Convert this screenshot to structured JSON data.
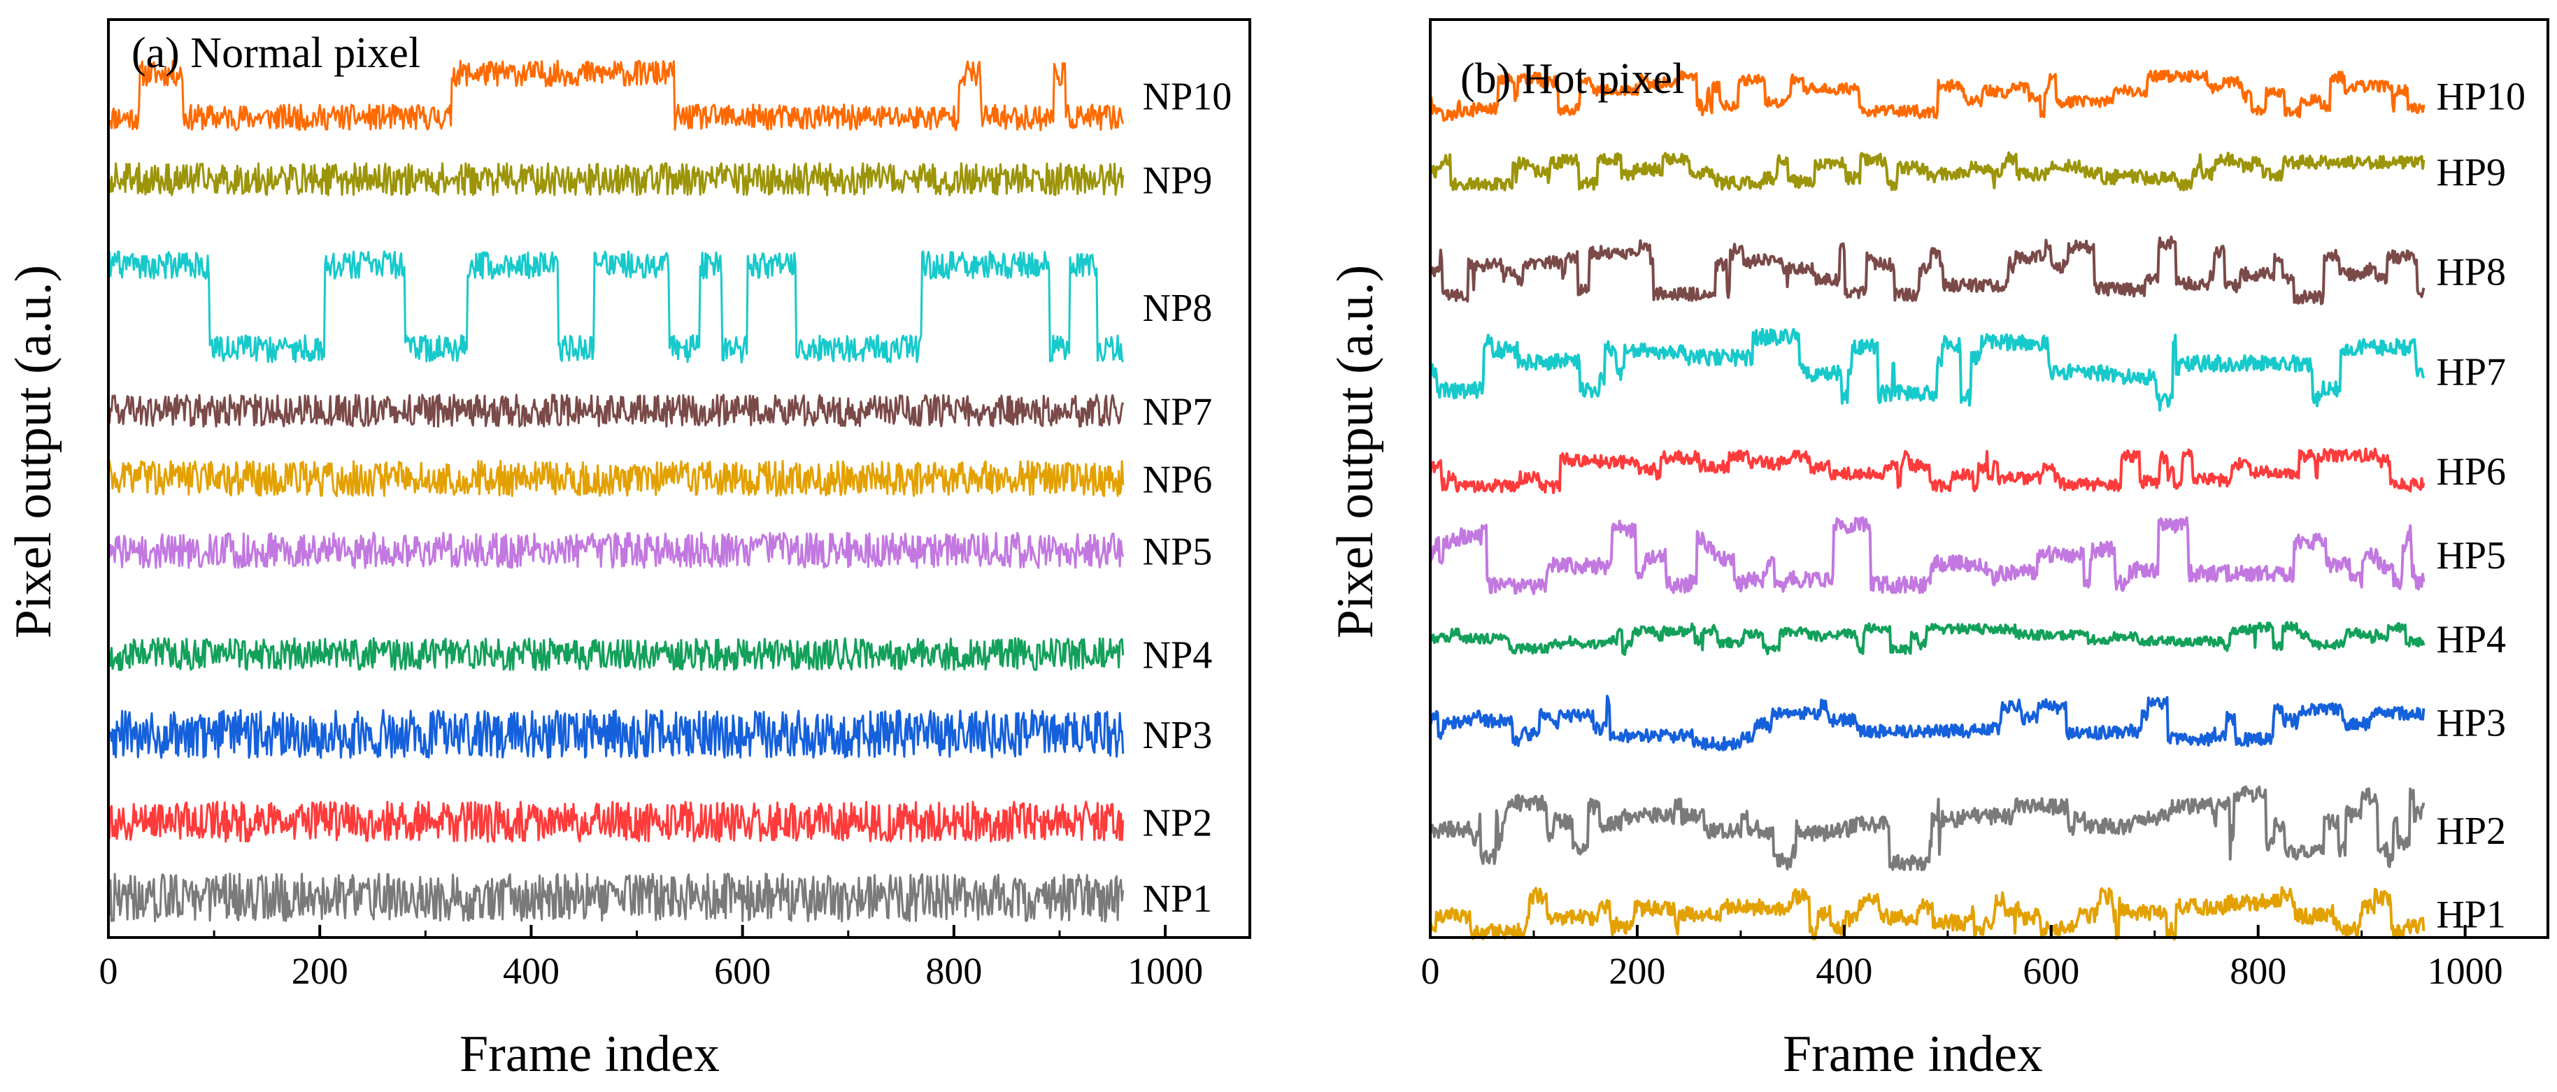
{
  "chart_data": [
    {
      "type": "line",
      "title": "(a) Normal pixel",
      "xlabel": "Frame index",
      "ylabel": "Pixel output (a.u.)",
      "xlim": [
        0,
        1080
      ],
      "xticks": [
        0,
        200,
        400,
        600,
        800,
        1000
      ],
      "ylim": [
        0,
        11.5
      ],
      "yticks_labeled": false,
      "frames": 960,
      "series": [
        {
          "name": "NP10",
          "color": "#FF6A00",
          "baseline": 10.55,
          "noise": 0.16,
          "rts": {
            "amp": 0.55,
            "high": [
              [
                30,
                70
              ],
              [
                325,
                535
              ],
              [
                805,
                825
              ],
              [
                895,
                905
              ]
            ]
          }
        },
        {
          "name": "NP9",
          "color": "#9C9409",
          "baseline": 9.5,
          "noise": 0.2
        },
        {
          "name": "NP8",
          "color": "#17C9CB",
          "baseline": 7.9,
          "noise": 0.17,
          "rts": {
            "amp": 1.05,
            "high": [
              [
                0,
                95
              ],
              [
                205,
                280
              ],
              [
                340,
                425
              ],
              [
                460,
                530
              ],
              [
                560,
                580
              ],
              [
                605,
                650
              ],
              [
                770,
                890
              ],
              [
                910,
                935
              ]
            ]
          }
        },
        {
          "name": "NP7",
          "color": "#7A4A48",
          "baseline": 6.6,
          "noise": 0.2
        },
        {
          "name": "NP6",
          "color": "#E3A100",
          "baseline": 5.75,
          "noise": 0.22
        },
        {
          "name": "NP5",
          "color": "#C278E0",
          "baseline": 4.85,
          "noise": 0.22
        },
        {
          "name": "NP4",
          "color": "#13A05A",
          "baseline": 3.55,
          "noise": 0.2
        },
        {
          "name": "NP3",
          "color": "#1560DB",
          "baseline": 2.55,
          "noise": 0.3
        },
        {
          "name": "NP2",
          "color": "#FF3B3B",
          "baseline": 1.45,
          "noise": 0.25
        },
        {
          "name": "NP1",
          "color": "#7A7A7A",
          "baseline": 0.5,
          "noise": 0.3
        }
      ]
    },
    {
      "type": "line",
      "title": "(b) Hot pixel",
      "xlabel": "Frame index",
      "ylabel": "Pixel output (a.u.)",
      "xlim": [
        0,
        1080
      ],
      "xticks": [
        0,
        200,
        400,
        600,
        800,
        1000
      ],
      "ylim": [
        0,
        11.5
      ],
      "yticks_labeled": false,
      "frames": 960,
      "series": [
        {
          "name": "HP10",
          "color": "#FF6A00",
          "baseline": 10.55,
          "noise": 0.07,
          "walk": 0.5
        },
        {
          "name": "HP9",
          "color": "#9C9409",
          "baseline": 9.6,
          "noise": 0.08,
          "walk": 0.35
        },
        {
          "name": "HP8",
          "color": "#7A4A48",
          "baseline": 8.35,
          "noise": 0.08,
          "walk": 0.7
        },
        {
          "name": "HP7",
          "color": "#17C9CB",
          "baseline": 7.1,
          "noise": 0.1,
          "walk": 0.9
        },
        {
          "name": "HP6",
          "color": "#FF3B3B",
          "baseline": 5.85,
          "noise": 0.08,
          "walk": 0.4
        },
        {
          "name": "HP5",
          "color": "#C278E0",
          "baseline": 4.8,
          "noise": 0.1,
          "walk": 0.8
        },
        {
          "name": "HP4",
          "color": "#13A05A",
          "baseline": 3.75,
          "noise": 0.06,
          "walk": 0.3
        },
        {
          "name": "HP3",
          "color": "#1560DB",
          "baseline": 2.7,
          "noise": 0.08,
          "walk": 0.55
        },
        {
          "name": "HP2",
          "color": "#7A7A7A",
          "baseline": 1.35,
          "noise": 0.1,
          "walk": 0.95
        },
        {
          "name": "HP1",
          "color": "#E3A100",
          "baseline": 0.3,
          "noise": 0.1,
          "walk": 0.5
        }
      ]
    }
  ]
}
